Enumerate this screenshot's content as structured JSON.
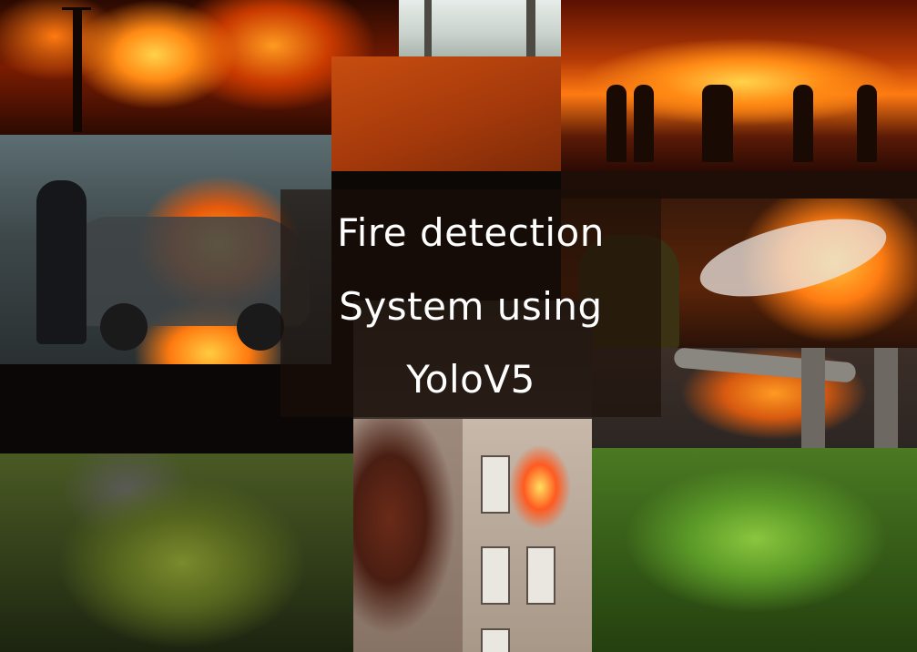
{
  "title": {
    "lines": [
      "Fire detection",
      "System using",
      "YoloV5"
    ]
  },
  "colors": {
    "text": "#ffffff",
    "overlay": "#1c0e08",
    "fire": "#ff7a12"
  }
}
